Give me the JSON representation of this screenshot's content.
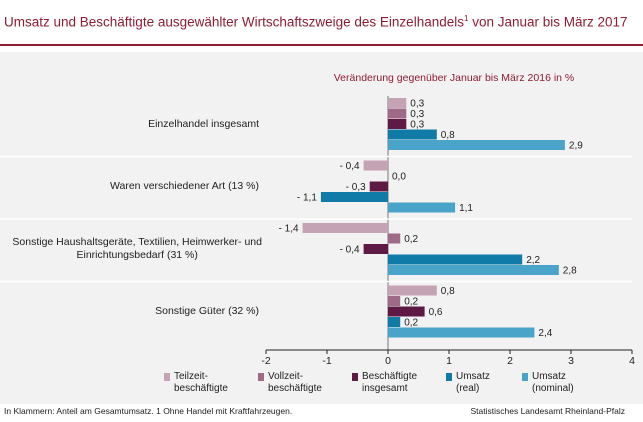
{
  "title": "Umsatz und Beschäftigte ausgewählter Wirtschaftszweige des Einzelhandels",
  "title_sup": "1",
  "title_rest": " von Januar bis März 2017",
  "footnote": "In Klammern: Anteil am Gesamtumsatz. 1 Ohne Handel mit Kraftfahrzeugen.",
  "source": "Statistisches Landesamt Rheinland-Pfalz",
  "chart_data": {
    "type": "bar",
    "orientation": "horizontal",
    "subtitle": "Veränderung gegenüber  Januar bis März 2016 in %",
    "categories": [
      "Einzelhandel insgesamt",
      "Waren verschiedener Art (13 %)",
      "Sonstige Haushaltsgeräte, Textilien, Heimwerker- und\nEinrichtungsbedarf (31 %)",
      "Sonstige Güter (32 %)"
    ],
    "xlim": [
      -2,
      4
    ],
    "xticks": [
      "-2",
      "-1",
      "0",
      "1",
      "2",
      "3",
      "4"
    ],
    "grid": false,
    "legend_position": "bottom",
    "series": [
      {
        "name": "Teilzeit-\nbeschäftigte",
        "color": "#c4a3b4",
        "values": [
          0.3,
          -0.4,
          -1.4,
          0.8
        ],
        "labels": [
          "0,3",
          "- 0,4",
          "- 1,4",
          "0,8"
        ]
      },
      {
        "name": "Vollzeit-\nbeschäftigte",
        "color": "#9e6a86",
        "values": [
          0.3,
          0.0,
          0.2,
          0.2
        ],
        "labels": [
          "0,3",
          "0,0",
          "0,2",
          "0,2"
        ]
      },
      {
        "name": "Beschäftigte\ninsgesamt",
        "color": "#5e1a45",
        "values": [
          0.3,
          -0.3,
          -0.4,
          0.6
        ],
        "labels": [
          "0,3",
          "- 0,3",
          "- 0,4",
          "0,6"
        ]
      },
      {
        "name": "Umsatz\n(real)",
        "color": "#0f7ba6",
        "values": [
          0.8,
          -1.1,
          2.2,
          0.2
        ],
        "labels": [
          "0,8",
          "- 1,1",
          "2,2",
          "0,2"
        ]
      },
      {
        "name": "Umsatz\n(nominal)",
        "color": "#4aa3c9",
        "values": [
          2.9,
          1.1,
          2.8,
          2.4
        ],
        "labels": [
          "2,9",
          "1,1",
          "2,8",
          "2,4"
        ]
      }
    ]
  }
}
